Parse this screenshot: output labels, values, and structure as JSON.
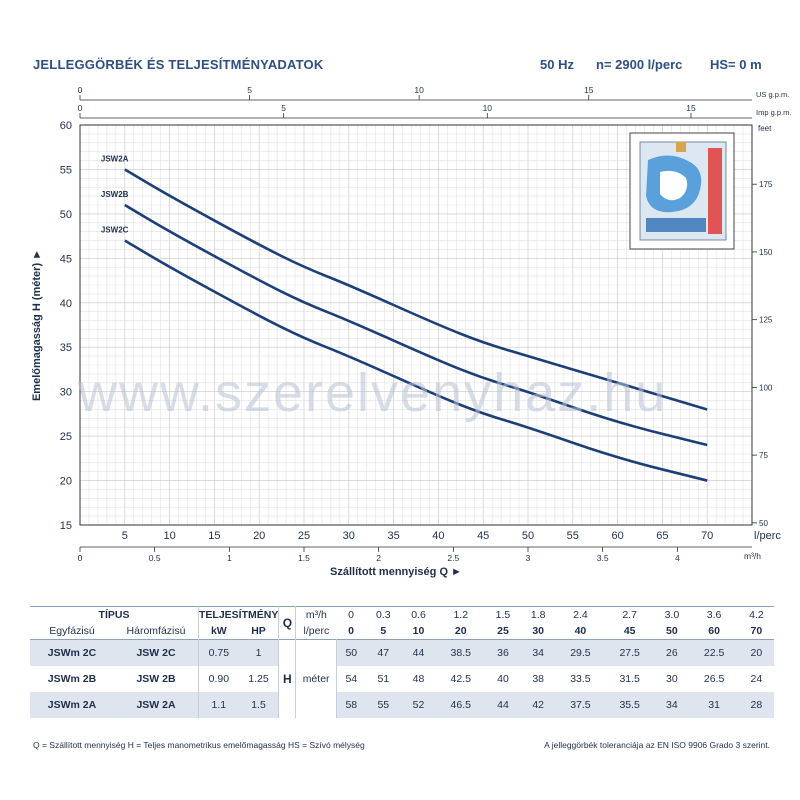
{
  "header": {
    "title": "JELLEGGÖRBÉK ÉS TELJESÍTMÉNYADATOK",
    "freq": "50 Hz",
    "speed": "n= 2900  l/perc",
    "hs": "HS= 0 m"
  },
  "watermark": "www.szerelvenyhaz.hu",
  "chart_data": {
    "type": "line",
    "x": [
      0,
      5,
      10,
      20,
      25,
      30,
      40,
      45,
      50,
      60,
      70
    ],
    "xlabel": "Szállított mennyiség Q ►",
    "ylabel": "Emelőmagasság H (méter) ►",
    "xlim": [
      0,
      75
    ],
    "ylim": [
      15,
      60
    ],
    "yticks": [
      15,
      20,
      25,
      30,
      35,
      40,
      45,
      50,
      55,
      60
    ],
    "xticks_lperc": [
      5,
      10,
      15,
      20,
      25,
      30,
      35,
      40,
      45,
      50,
      55,
      60,
      65,
      70
    ],
    "xunit_lperc": "l/perc",
    "top_axis_us": {
      "unit": "US g.p.m.",
      "ticks": [
        0,
        5,
        10,
        15
      ]
    },
    "top_axis_imp": {
      "unit": "Imp g.p.m.",
      "ticks": [
        0,
        5,
        10,
        15
      ]
    },
    "bottom_axis_m3h": {
      "unit": "m³/h",
      "ticks": [
        "0",
        "0.5",
        "1",
        "1.5",
        "2",
        "2.5",
        "3",
        "3.5",
        "4"
      ]
    },
    "right_axis_feet": {
      "unit": "feet",
      "ticks": [
        50,
        75,
        100,
        125,
        150,
        175
      ]
    },
    "series": [
      {
        "name": "JSW2A",
        "values": [
          58,
          55,
          52,
          46.5,
          44,
          42,
          37.5,
          35.5,
          34,
          31,
          28
        ]
      },
      {
        "name": "JSW2B",
        "values": [
          54,
          51,
          48,
          42.5,
          40,
          38,
          33.5,
          31.5,
          30,
          26.5,
          24
        ]
      },
      {
        "name": "JSW2C",
        "values": [
          50,
          47,
          44,
          38.5,
          36,
          34,
          29.5,
          27.5,
          26,
          22.5,
          20
        ]
      }
    ],
    "colors": {
      "curve": "#1d3f78",
      "grid": "#d5d5d5",
      "frame": "#333333"
    }
  },
  "table": {
    "tipus": "TÍPUS",
    "teljesitmeny": "TELJESÍTMÉNY",
    "egyfazisu": "Egyfázisú",
    "haromfazisu": "Háromfázisú",
    "kw": "kW",
    "hp": "HP",
    "q": "Q",
    "q_m3h": "m³/h",
    "q_lperc": "l/perc",
    "h": "H",
    "meter": "méter",
    "m3h": [
      "0",
      "0.3",
      "0.6",
      "1.2",
      "1.5",
      "1.8",
      "2.4",
      "2.7",
      "3.0",
      "3.6",
      "4.2"
    ],
    "lperc": [
      "0",
      "5",
      "10",
      "20",
      "25",
      "30",
      "40",
      "45",
      "50",
      "60",
      "70"
    ],
    "rows": [
      {
        "single": "JSWm 2C",
        "three": "JSW 2C",
        "kw": "0.75",
        "hp": "1",
        "h": [
          "50",
          "47",
          "44",
          "38.5",
          "36",
          "34",
          "29.5",
          "27.5",
          "26",
          "22.5",
          "20"
        ]
      },
      {
        "single": "JSWm 2B",
        "three": "JSW 2B",
        "kw": "0.90",
        "hp": "1.25",
        "h": [
          "54",
          "51",
          "48",
          "42.5",
          "40",
          "38",
          "33.5",
          "31.5",
          "30",
          "26.5",
          "24"
        ]
      },
      {
        "single": "JSWm 2A",
        "three": "JSW 2A",
        "kw": "1.1",
        "hp": "1.5",
        "h": [
          "58",
          "55",
          "52",
          "46.5",
          "44",
          "42",
          "37.5",
          "35.5",
          "34",
          "31",
          "28"
        ]
      }
    ]
  },
  "footer": {
    "left": "Q = Szállított mennyiség   H = Teljes manometrikus emelőmagasság   HS = Szívó mélység",
    "right": "A jelleggörbék toleranciája az EN ISO 9906 Grado 3 szerint."
  }
}
